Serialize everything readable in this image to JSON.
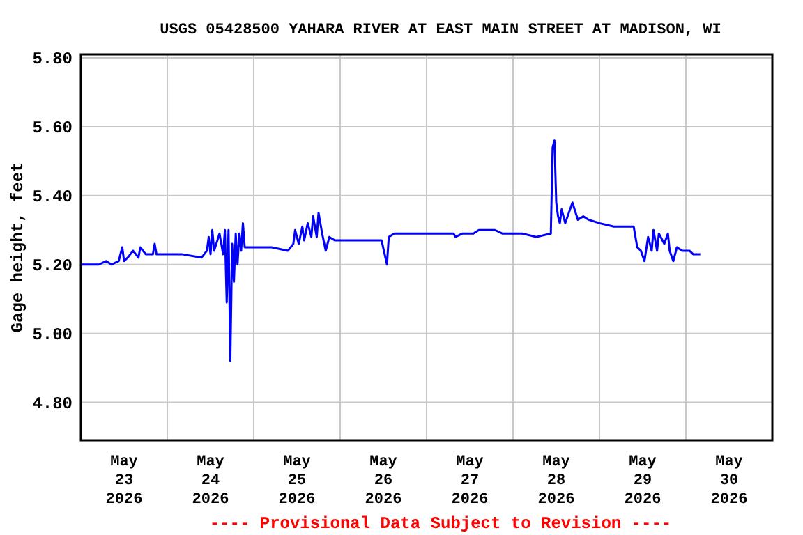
{
  "chart_data": {
    "type": "line",
    "title": "USGS 05428500 YAHARA RIVER AT EAST MAIN STREET AT MADISON, WI",
    "ylabel": "Gage height, feet",
    "annotations": [
      "---- Provisional Data Subject to Revision ----"
    ],
    "xlim": [
      "2026-05-23",
      "2026-05-31"
    ],
    "ylim": [
      4.69,
      5.81
    ],
    "yticks": [
      {
        "value": 4.8,
        "label": "4.80"
      },
      {
        "value": 5.0,
        "label": "5.00"
      },
      {
        "value": 5.2,
        "label": "5.20"
      },
      {
        "value": 5.4,
        "label": "5.40"
      },
      {
        "value": 5.6,
        "label": "5.60"
      },
      {
        "value": 5.8,
        "label": "5.80"
      }
    ],
    "xticks": [
      {
        "value": "2026-05-24",
        "label": null
      },
      {
        "value": "2026-05-25",
        "label": null
      },
      {
        "value": "2026-05-26",
        "label": null
      },
      {
        "value": "2026-05-27",
        "label": null
      },
      {
        "value": "2026-05-28",
        "label": null
      },
      {
        "value": "2026-05-29",
        "label": null
      },
      {
        "value": "2026-05-30",
        "label": null
      },
      {
        "value": "2026-05-23T12:00",
        "label": "May\n23\n2026"
      },
      {
        "value": "2026-05-24T12:00",
        "label": "May\n24\n2026"
      },
      {
        "value": "2026-05-25T12:00",
        "label": "May\n25\n2026"
      },
      {
        "value": "2026-05-26T12:00",
        "label": "May\n26\n2026"
      },
      {
        "value": "2026-05-27T12:00",
        "label": "May\n27\n2026"
      },
      {
        "value": "2026-05-28T12:00",
        "label": "May\n28\n2026"
      },
      {
        "value": "2026-05-29T12:00",
        "label": "May\n29\n2026"
      },
      {
        "value": "2026-05-30T12:00",
        "label": "May\n30\n2026"
      }
    ],
    "grid": true,
    "marker": "none",
    "line_style": "solid",
    "series": [
      {
        "color": "#0000ff",
        "x": [
          "2026-05-23T00:00",
          "2026-05-23T05:00",
          "2026-05-23T07:00",
          "2026-05-23T08:30",
          "2026-05-23T10:30",
          "2026-05-23T11:30",
          "2026-05-23T12:00",
          "2026-05-23T13:00",
          "2026-05-23T14:30",
          "2026-05-23T16:00",
          "2026-05-23T16:30",
          "2026-05-23T18:00",
          "2026-05-23T20:00",
          "2026-05-23T20:30",
          "2026-05-23T21:00",
          "2026-05-23T22:00",
          "2026-05-24T04:00",
          "2026-05-24T09:30",
          "2026-05-24T11:00",
          "2026-05-24T11:30",
          "2026-05-24T12:00",
          "2026-05-24T12:30",
          "2026-05-24T13:00",
          "2026-05-24T14:30",
          "2026-05-24T15:30",
          "2026-05-24T16:00",
          "2026-05-24T16:30",
          "2026-05-24T17:00",
          "2026-05-24T17:30",
          "2026-05-24T18:00",
          "2026-05-24T18:30",
          "2026-05-24T19:00",
          "2026-05-24T19:30",
          "2026-05-24T20:00",
          "2026-05-24T20:30",
          "2026-05-24T21:00",
          "2026-05-24T21:30",
          "2026-05-24T23:00",
          "2026-05-25T05:00",
          "2026-05-25T09:30",
          "2026-05-25T11:00",
          "2026-05-25T11:30",
          "2026-05-25T12:30",
          "2026-05-25T13:30",
          "2026-05-25T14:00",
          "2026-05-25T15:00",
          "2026-05-25T16:00",
          "2026-05-25T16:30",
          "2026-05-25T17:30",
          "2026-05-25T18:00",
          "2026-05-25T19:00",
          "2026-05-25T20:00",
          "2026-05-25T21:00",
          "2026-05-25T22:30",
          "2026-05-26T06:00",
          "2026-05-26T11:30",
          "2026-05-26T13:00",
          "2026-05-26T13:30",
          "2026-05-26T15:00",
          "2026-05-26T18:00",
          "2026-05-26T21:30",
          "2026-05-27T01:30",
          "2026-05-27T07:30",
          "2026-05-27T08:00",
          "2026-05-27T10:00",
          "2026-05-27T13:00",
          "2026-05-27T14:30",
          "2026-05-27T19:00",
          "2026-05-27T21:00",
          "2026-05-28T02:30",
          "2026-05-28T06:30",
          "2026-05-28T10:30",
          "2026-05-28T11:00",
          "2026-05-28T11:30",
          "2026-05-28T12:00",
          "2026-05-28T12:30",
          "2026-05-28T13:00",
          "2026-05-28T13:30",
          "2026-05-28T14:30",
          "2026-05-28T15:30",
          "2026-05-28T16:30",
          "2026-05-28T18:00",
          "2026-05-28T19:30",
          "2026-05-28T21:00",
          "2026-05-29T00:00",
          "2026-05-29T04:00",
          "2026-05-29T09:30",
          "2026-05-29T10:30",
          "2026-05-29T11:30",
          "2026-05-29T12:30",
          "2026-05-29T13:30",
          "2026-05-29T14:30",
          "2026-05-29T15:00",
          "2026-05-29T16:00",
          "2026-05-29T16:30",
          "2026-05-29T18:00",
          "2026-05-29T19:00",
          "2026-05-29T19:30",
          "2026-05-29T20:30",
          "2026-05-29T21:30",
          "2026-05-29T23:00",
          "2026-05-30T01:00",
          "2026-05-30T02:00",
          "2026-05-30T04:00"
        ],
        "values": [
          5.2,
          5.2,
          5.21,
          5.2,
          5.21,
          5.25,
          5.21,
          5.22,
          5.24,
          5.22,
          5.25,
          5.23,
          5.23,
          5.26,
          5.23,
          5.23,
          5.23,
          5.22,
          5.24,
          5.28,
          5.23,
          5.3,
          5.24,
          5.29,
          5.23,
          5.3,
          5.09,
          5.3,
          4.92,
          5.26,
          5.15,
          5.29,
          5.2,
          5.29,
          5.24,
          5.32,
          5.25,
          5.25,
          5.25,
          5.24,
          5.26,
          5.3,
          5.26,
          5.31,
          5.27,
          5.32,
          5.28,
          5.34,
          5.28,
          5.35,
          5.29,
          5.24,
          5.28,
          5.27,
          5.27,
          5.27,
          5.2,
          5.28,
          5.29,
          5.29,
          5.29,
          5.29,
          5.29,
          5.28,
          5.29,
          5.29,
          5.3,
          5.3,
          5.29,
          5.29,
          5.28,
          5.29,
          5.54,
          5.56,
          5.38,
          5.34,
          5.32,
          5.36,
          5.32,
          5.35,
          5.38,
          5.33,
          5.34,
          5.33,
          5.32,
          5.31,
          5.31,
          5.25,
          5.24,
          5.21,
          5.28,
          5.24,
          5.3,
          5.24,
          5.29,
          5.26,
          5.29,
          5.24,
          5.21,
          5.25,
          5.24,
          5.24,
          5.23,
          5.23
        ]
      }
    ]
  }
}
